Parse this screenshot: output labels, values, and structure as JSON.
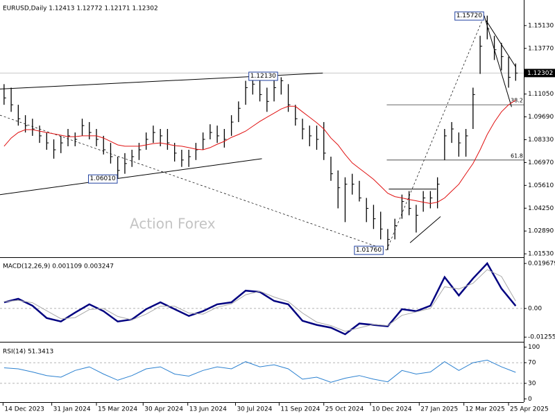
{
  "chart_data": [
    {
      "type": "ohlc",
      "title": "EURUSD,Daily  1.12413 1.12772 1.12171 1.12302",
      "watermark": "Action Forex",
      "xlim": [
        "2023-12-11",
        "2025-05-10"
      ],
      "ylim": [
        1.0137,
        1.1657
      ],
      "yticks": [
        {
          "value": 1.1513,
          "label": "1.15130"
        },
        {
          "value": 1.1377,
          "label": "1.13770"
        },
        {
          "value": 1.1105,
          "label": "1.11050"
        },
        {
          "value": 1.0969,
          "label": "1.09690"
        },
        {
          "value": 1.0833,
          "label": "1.08330"
        },
        {
          "value": 1.0697,
          "label": "1.06970"
        },
        {
          "value": 1.0561,
          "label": "1.05610"
        },
        {
          "value": 1.0425,
          "label": "1.04250"
        },
        {
          "value": 1.0289,
          "label": "1.02890"
        },
        {
          "value": 1.0153,
          "label": "1.01530"
        }
      ],
      "color": "#000000",
      "x": [
        "2023-12-15",
        "2023-12-22",
        "2023-12-29",
        "2024-01-05",
        "2024-01-12",
        "2024-01-19",
        "2024-01-26",
        "2024-02-02",
        "2024-02-09",
        "2024-02-16",
        "2024-02-23",
        "2024-03-01",
        "2024-03-08",
        "2024-03-15",
        "2024-03-22",
        "2024-03-29",
        "2024-04-05",
        "2024-04-12",
        "2024-04-19",
        "2024-04-26",
        "2024-05-03",
        "2024-05-10",
        "2024-05-17",
        "2024-05-24",
        "2024-05-31",
        "2024-06-07",
        "2024-06-14",
        "2024-06-21",
        "2024-06-28",
        "2024-07-05",
        "2024-07-12",
        "2024-07-19",
        "2024-07-26",
        "2024-08-02",
        "2024-08-09",
        "2024-08-16",
        "2024-08-23",
        "2024-08-30",
        "2024-09-06",
        "2024-09-13",
        "2024-09-20",
        "2024-09-27",
        "2024-10-04",
        "2024-10-11",
        "2024-10-18",
        "2024-10-25",
        "2024-11-01",
        "2024-11-08",
        "2024-11-15",
        "2024-11-22",
        "2024-11-29",
        "2024-12-06",
        "2024-12-13",
        "2024-12-20",
        "2024-12-27",
        "2025-01-03",
        "2025-01-10",
        "2025-01-17",
        "2025-01-24",
        "2025-01-31",
        "2025-02-07",
        "2025-02-14",
        "2025-02-21",
        "2025-02-28",
        "2025-03-07",
        "2025-03-14",
        "2025-03-21",
        "2025-03-28",
        "2025-04-04",
        "2025-04-11",
        "2025-04-18",
        "2025-04-25",
        "2025-05-02"
      ],
      "high": [
        1.1164,
        1.1143,
        1.1041,
        1.0979,
        1.0958,
        1.0917,
        1.0876,
        1.0835,
        1.0856,
        1.0897,
        1.0876,
        1.0958,
        1.0938,
        1.0897,
        1.0856,
        1.0814,
        1.0732,
        1.0753,
        1.0773,
        1.0814,
        1.0876,
        1.0917,
        1.0897,
        1.0897,
        1.0814,
        1.0773,
        1.0773,
        1.0814,
        1.0876,
        1.0925,
        1.0917,
        1.0897,
        1.0979,
        1.1061,
        1.1184,
        1.1213,
        1.1184,
        1.1143,
        1.1184,
        1.1205,
        1.1164,
        1.1041,
        1.0958,
        1.0917,
        1.0917,
        1.0938,
        1.0732,
        1.065,
        1.0609,
        1.063,
        1.0588,
        1.0486,
        1.0445,
        1.0404,
        1.0301,
        1.0362,
        1.0506,
        1.0527,
        1.0445,
        1.0527,
        1.0527,
        1.0609,
        1.0897,
        1.0938,
        1.0876,
        1.0897,
        1.1143,
        1.1452,
        1.1572,
        1.1452,
        1.141,
        1.1328,
        1.1287
      ],
      "low": [
        1.1041,
        1.0999,
        1.0917,
        1.0876,
        1.0856,
        1.0814,
        1.0773,
        1.072,
        1.0753,
        1.0794,
        1.0794,
        1.0856,
        1.0835,
        1.0794,
        1.0745,
        1.0691,
        1.0601,
        1.063,
        1.0671,
        1.0712,
        1.0773,
        1.0814,
        1.0794,
        1.0773,
        1.0703,
        1.0671,
        1.0671,
        1.0712,
        1.0773,
        1.0835,
        1.0814,
        1.0786,
        1.0856,
        1.0938,
        1.1041,
        1.1102,
        1.1061,
        1.0999,
        1.1061,
        1.1102,
        1.0999,
        1.0917,
        1.0835,
        1.0794,
        1.0773,
        1.0712,
        1.0588,
        1.0424,
        1.0342,
        1.0506,
        1.0465,
        1.0342,
        1.0301,
        1.0239,
        1.0176,
        1.0239,
        1.0362,
        1.0383,
        1.028,
        1.0404,
        1.0424,
        1.0424,
        1.0712,
        1.0814,
        1.0732,
        1.0732,
        1.0897,
        1.1225,
        1.1431,
        1.1308,
        1.1246,
        1.1143,
        1.1184
      ],
      "close": [
        1.1082,
        1.1041,
        1.0958,
        1.0917,
        1.0897,
        1.0856,
        1.0814,
        1.0773,
        1.0814,
        1.0856,
        1.0835,
        1.0917,
        1.0876,
        1.0835,
        1.0773,
        1.0732,
        1.065,
        1.0691,
        1.0732,
        1.0773,
        1.0835,
        1.0876,
        1.0856,
        1.0814,
        1.0753,
        1.0712,
        1.0732,
        1.0773,
        1.0835,
        1.0876,
        1.0856,
        1.0835,
        1.0938,
        1.102,
        1.1143,
        1.1164,
        1.1102,
        1.1061,
        1.1143,
        1.1184,
        1.1041,
        1.0958,
        1.0897,
        1.0856,
        1.0835,
        1.0753,
        1.063,
        1.0547,
        1.0568,
        1.0568,
        1.0486,
        1.0424,
        1.0362,
        1.0301,
        1.0239,
        1.0321,
        1.0465,
        1.0424,
        1.0383,
        1.0486,
        1.0486,
        1.0568,
        1.0856,
        1.0897,
        1.0814,
        1.0856,
        1.1102,
        1.139,
        1.1493,
        1.1369,
        1.1328,
        1.1205,
        1.123
      ],
      "ma": {
        "color": "#e01010",
        "values": [
          1.0794,
          1.0843,
          1.0876,
          1.0893,
          1.0893,
          1.0884,
          1.0876,
          1.0868,
          1.086,
          1.0851,
          1.0851,
          1.0856,
          1.0856,
          1.0856,
          1.0843,
          1.0823,
          1.0802,
          1.0794,
          1.0794,
          1.0794,
          1.0802,
          1.081,
          1.0814,
          1.0806,
          1.0798,
          1.0794,
          1.0786,
          1.0777,
          1.0773,
          1.0786,
          1.0806,
          1.0823,
          1.0847,
          1.0864,
          1.0884,
          1.0913,
          1.0942,
          1.0967,
          1.0991,
          1.1016,
          1.1032,
          1.1032,
          1.0999,
          1.0967,
          1.0934,
          1.0897,
          1.0843,
          1.0802,
          1.0745,
          1.0695,
          1.0662,
          1.063,
          1.0597,
          1.0556,
          1.0514,
          1.0494,
          1.0486,
          1.0477,
          1.0469,
          1.0461,
          1.0453,
          1.0461,
          1.0486,
          1.0527,
          1.0568,
          1.063,
          1.0691,
          1.0773,
          1.0864,
          1.0938,
          1.0999,
          1.1041,
          1.1069
        ]
      },
      "last_price": 1.12302,
      "price_labels": [
        {
          "label": "1.15720",
          "value": 1.1572,
          "date": "2025-04-01"
        },
        {
          "label": "1.12130",
          "value": 1.1213,
          "date": "2024-09-10"
        },
        {
          "label": "1.06010",
          "value": 1.0601,
          "date": "2024-04-05"
        },
        {
          "label": "1.01760",
          "value": 1.0176,
          "date": "2024-12-23"
        }
      ],
      "fibs": [
        {
          "label": "38.2",
          "value": 1.1041,
          "from": "2024-12-26"
        },
        {
          "label": "61.8",
          "value": 1.0712,
          "from": "2024-12-26"
        }
      ],
      "trendlines": [
        {
          "x": [
            "2023-12-11",
            "2024-10-24"
          ],
          "y": [
            1.1135,
            1.123
          ],
          "dashed": false
        },
        {
          "x": [
            "2023-12-11",
            "2024-08-25"
          ],
          "y": [
            1.0506,
            1.072
          ],
          "dashed": false
        },
        {
          "x": [
            "2023-12-11",
            "2024-12-26"
          ],
          "y": [
            1.0979,
            1.0176
          ],
          "dashed": true
        },
        {
          "x": [
            "2024-12-26",
            "2025-04-01"
          ],
          "y": [
            1.0176,
            1.1572
          ],
          "dashed": true
        },
        {
          "x": [
            "2024-12-28",
            "2025-02-13"
          ],
          "y": [
            1.0539,
            1.0539
          ],
          "dashed": false
        },
        {
          "x": [
            "2025-01-18",
            "2025-02-17"
          ],
          "y": [
            1.0219,
            1.0375
          ],
          "dashed": false
        },
        {
          "x": [
            "2025-04-01",
            "2025-04-28"
          ],
          "y": [
            1.1572,
            1.1028
          ],
          "dashed": false
        },
        {
          "x": [
            "2025-04-03",
            "2025-05-02"
          ],
          "y": [
            1.1542,
            1.1267
          ],
          "dashed": false
        }
      ]
    },
    {
      "type": "line",
      "title": "MACD(12,26,9) 0.001109 0.003247",
      "xlim": [
        "2023-12-11",
        "2025-05-10"
      ],
      "ylim": [
        -0.0143,
        0.0215
      ],
      "yticks": [
        0.019679,
        {
          "value": 0,
          "label": "0.00"
        },
        -0.012552
      ],
      "levels": [
        0
      ],
      "x": [
        "2023-12-15",
        "2023-12-29",
        "2024-01-12",
        "2024-01-26",
        "2024-02-09",
        "2024-02-23",
        "2024-03-08",
        "2024-03-22",
        "2024-04-05",
        "2024-04-19",
        "2024-05-03",
        "2024-05-17",
        "2024-05-31",
        "2024-06-14",
        "2024-06-28",
        "2024-07-12",
        "2024-07-26",
        "2024-08-09",
        "2024-08-23",
        "2024-09-06",
        "2024-09-20",
        "2024-10-04",
        "2024-10-18",
        "2024-11-01",
        "2024-11-15",
        "2024-11-29",
        "2024-12-13",
        "2024-12-27",
        "2025-01-10",
        "2025-01-24",
        "2025-02-07",
        "2025-02-21",
        "2025-03-07",
        "2025-03-21",
        "2025-04-04",
        "2025-04-18",
        "2025-05-02"
      ],
      "lines": [
        {
          "color": "#000080",
          "width": 2.5,
          "values": [
            0.0027,
            0.0042,
            0.0012,
            -0.0042,
            -0.0057,
            -0.0018,
            0.0018,
            -0.0012,
            -0.0057,
            -0.0048,
            -0.0003,
            0.0027,
            -0.0003,
            -0.0033,
            -0.0012,
            0.0018,
            0.0027,
            0.0078,
            0.0072,
            0.0033,
            0.0018,
            -0.0054,
            -0.0072,
            -0.0084,
            -0.0113,
            -0.0066,
            -0.0072,
            -0.0078,
            -0.0003,
            -0.0012,
            0.0012,
            0.0137,
            0.0057,
            0.0131,
            0.0197,
            0.0087,
            0.0011
          ]
        },
        {
          "color": "#a8a8a8",
          "width": 1,
          "values": [
            0.003,
            0.0035,
            0.0025,
            -0.001,
            -0.0045,
            -0.004,
            -0.0005,
            0.0,
            -0.0035,
            -0.005,
            -0.0025,
            0.001,
            0.001,
            -0.002,
            -0.0025,
            0.0005,
            0.002,
            0.006,
            0.0075,
            0.005,
            0.003,
            -0.002,
            -0.006,
            -0.0075,
            -0.01,
            -0.0085,
            -0.007,
            -0.0075,
            -0.003,
            -0.0015,
            0.0,
            0.0095,
            0.0085,
            0.011,
            0.017,
            0.014,
            0.0032
          ]
        }
      ]
    },
    {
      "type": "line",
      "title": "RSI(14) 51.3413",
      "xlim": [
        "2023-12-11",
        "2025-05-10"
      ],
      "ylim": [
        -5,
        105
      ],
      "yticks": [
        100,
        70,
        30,
        0
      ],
      "levels": [
        70,
        30
      ],
      "xticks": [
        {
          "value": "2023-12-14",
          "label": "14 Dec 2023"
        },
        {
          "value": "2024-01-31",
          "label": "31 Jan 2024"
        },
        {
          "value": "2024-03-15",
          "label": "15 Mar 2024"
        },
        {
          "value": "2024-04-30",
          "label": "30 Apr 2024"
        },
        {
          "value": "2024-06-13",
          "label": "13 Jun 2024"
        },
        {
          "value": "2024-07-30",
          "label": "30 Jul 2024"
        },
        {
          "value": "2024-09-11",
          "label": "11 Sep 2024"
        },
        {
          "value": "2024-10-25",
          "label": "25 Oct 2024"
        },
        {
          "value": "2024-12-10",
          "label": "10 Dec 2024"
        },
        {
          "value": "2025-01-27",
          "label": "27 Jan 2025"
        },
        {
          "value": "2025-03-12",
          "label": "12 Mar 2025"
        },
        {
          "value": "2025-04-25",
          "label": "25 Apr 2025"
        }
      ],
      "x": [
        "2023-12-15",
        "2023-12-29",
        "2024-01-12",
        "2024-01-26",
        "2024-02-09",
        "2024-02-23",
        "2024-03-08",
        "2024-03-22",
        "2024-04-05",
        "2024-04-19",
        "2024-05-03",
        "2024-05-17",
        "2024-05-31",
        "2024-06-14",
        "2024-06-28",
        "2024-07-12",
        "2024-07-26",
        "2024-08-09",
        "2024-08-23",
        "2024-09-06",
        "2024-09-20",
        "2024-10-04",
        "2024-10-18",
        "2024-11-01",
        "2024-11-15",
        "2024-11-29",
        "2024-12-13",
        "2024-12-27",
        "2025-01-10",
        "2025-01-24",
        "2025-02-07",
        "2025-02-21",
        "2025-03-07",
        "2025-03-21",
        "2025-04-04",
        "2025-04-18",
        "2025-05-02"
      ],
      "lines": [
        {
          "color": "#2a80d0",
          "width": 1,
          "values": [
            60,
            58,
            52,
            45,
            42,
            55,
            62,
            48,
            36,
            45,
            58,
            62,
            48,
            44,
            55,
            62,
            58,
            72,
            62,
            66,
            58,
            38,
            42,
            32,
            40,
            45,
            38,
            33,
            55,
            48,
            52,
            72,
            55,
            70,
            75,
            62,
            51.3
          ]
        }
      ]
    }
  ]
}
